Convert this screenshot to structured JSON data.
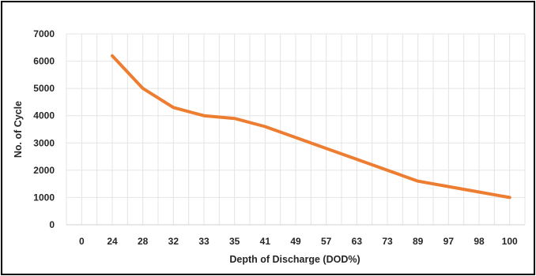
{
  "chart_data": {
    "type": "line",
    "title": "",
    "xlabel": "Depth of Discharge (DOD%)",
    "ylabel": "No. of Cycle",
    "categories": [
      "0",
      "24",
      "28",
      "32",
      "33",
      "35",
      "41",
      "49",
      "57",
      "63",
      "73",
      "89",
      "97",
      "98",
      "100"
    ],
    "series": [
      {
        "color": "#ED7D31",
        "values": [
          null,
          6200,
          5000,
          4300,
          4000,
          3900,
          3600,
          3200,
          2800,
          2400,
          2000,
          1600,
          1400,
          1200,
          1000
        ]
      }
    ],
    "ylim": [
      0,
      7000
    ],
    "yticks": [
      0,
      1000,
      2000,
      3000,
      4000,
      5000,
      6000,
      7000
    ],
    "grid": "vertical and horizontal",
    "legend": "none"
  }
}
